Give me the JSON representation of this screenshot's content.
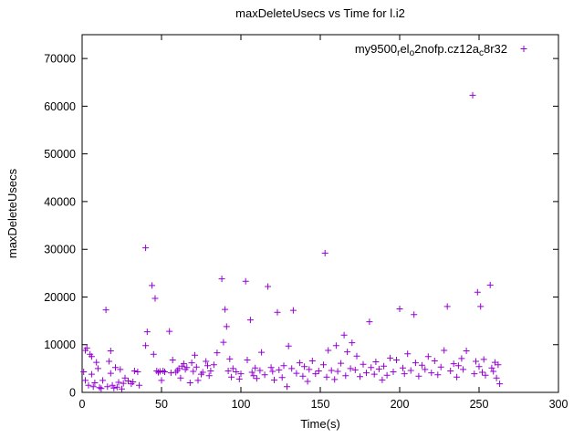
{
  "chart_data": {
    "type": "scatter",
    "title": "maxDeleteUsecs vs Time for l.i2",
    "xlabel": "Time(s)",
    "ylabel": "maxDeleteUsecs",
    "xlim": [
      0,
      300
    ],
    "ylim": [
      0,
      75000
    ],
    "xticks": [
      0,
      50,
      100,
      150,
      200,
      250,
      300
    ],
    "yticks": [
      0,
      10000,
      20000,
      30000,
      40000,
      50000,
      60000,
      70000
    ],
    "grid": false,
    "legend_position": "top-right-inside",
    "marker": "plus",
    "marker_color": "#9400d3",
    "legend": {
      "segments": [
        {
          "t": "my9500",
          "sub": false
        },
        {
          "t": "r",
          "sub": true
        },
        {
          "t": "el",
          "sub": false
        },
        {
          "t": "o",
          "sub": true
        },
        {
          "t": "2nofp.cz12a",
          "sub": false
        },
        {
          "t": "c",
          "sub": true
        },
        {
          "t": "8r32",
          "sub": false
        }
      ]
    },
    "series": [
      {
        "name": "my9500_rel_o2nofp.cz12a_c8r32",
        "points": [
          [
            1,
            4300
          ],
          [
            2,
            8800
          ],
          [
            2,
            2500
          ],
          [
            3,
            9300
          ],
          [
            4,
            1500
          ],
          [
            5,
            8000
          ],
          [
            6,
            7500
          ],
          [
            6,
            3800
          ],
          [
            7,
            1200
          ],
          [
            8,
            2000
          ],
          [
            9,
            6300
          ],
          [
            10,
            5000
          ],
          [
            11,
            1000
          ],
          [
            12,
            800
          ],
          [
            13,
            2500
          ],
          [
            15,
            17300
          ],
          [
            16,
            1200
          ],
          [
            17,
            6500
          ],
          [
            18,
            4000
          ],
          [
            18,
            8700
          ],
          [
            19,
            1500
          ],
          [
            20,
            900
          ],
          [
            21,
            5200
          ],
          [
            22,
            1100
          ],
          [
            23,
            2100
          ],
          [
            24,
            4800
          ],
          [
            25,
            700
          ],
          [
            26,
            1900
          ],
          [
            27,
            3000
          ],
          [
            29,
            2400
          ],
          [
            31,
            1800
          ],
          [
            32,
            2200
          ],
          [
            33,
            4500
          ],
          [
            35,
            4300
          ],
          [
            36,
            1500
          ],
          [
            40,
            30300
          ],
          [
            40,
            9800
          ],
          [
            41,
            12700
          ],
          [
            44,
            22400
          ],
          [
            46,
            19700
          ],
          [
            45,
            8000
          ],
          [
            47,
            4500
          ],
          [
            48,
            4200
          ],
          [
            49,
            4400
          ],
          [
            50,
            2500
          ],
          [
            51,
            4500
          ],
          [
            52,
            4300
          ],
          [
            55,
            12800
          ],
          [
            56,
            4100
          ],
          [
            57,
            6800
          ],
          [
            59,
            4200
          ],
          [
            60,
            4600
          ],
          [
            61,
            5000
          ],
          [
            62,
            3000
          ],
          [
            63,
            5500
          ],
          [
            64,
            6000
          ],
          [
            65,
            4800
          ],
          [
            66,
            5200
          ],
          [
            68,
            2000
          ],
          [
            69,
            6200
          ],
          [
            70,
            4400
          ],
          [
            71,
            7800
          ],
          [
            72,
            5300
          ],
          [
            73,
            2500
          ],
          [
            75,
            3800
          ],
          [
            76,
            4200
          ],
          [
            78,
            6500
          ],
          [
            79,
            5600
          ],
          [
            80,
            3500
          ],
          [
            81,
            4500
          ],
          [
            83,
            5800
          ],
          [
            85,
            8300
          ],
          [
            88,
            23800
          ],
          [
            89,
            10500
          ],
          [
            90,
            17400
          ],
          [
            91,
            13800
          ],
          [
            92,
            4500
          ],
          [
            93,
            7000
          ],
          [
            94,
            3200
          ],
          [
            95,
            5000
          ],
          [
            97,
            4300
          ],
          [
            99,
            2800
          ],
          [
            100,
            3900
          ],
          [
            103,
            23300
          ],
          [
            104,
            6800
          ],
          [
            106,
            15200
          ],
          [
            107,
            4200
          ],
          [
            108,
            3500
          ],
          [
            109,
            5100
          ],
          [
            110,
            2900
          ],
          [
            112,
            4600
          ],
          [
            113,
            8400
          ],
          [
            115,
            3700
          ],
          [
            117,
            22200
          ],
          [
            119,
            5200
          ],
          [
            120,
            4400
          ],
          [
            121,
            2600
          ],
          [
            123,
            16800
          ],
          [
            124,
            4700
          ],
          [
            126,
            3100
          ],
          [
            127,
            5600
          ],
          [
            129,
            1200
          ],
          [
            130,
            9700
          ],
          [
            132,
            5000
          ],
          [
            133,
            17200
          ],
          [
            135,
            4000
          ],
          [
            137,
            6200
          ],
          [
            139,
            3400
          ],
          [
            140,
            5400
          ],
          [
            142,
            2300
          ],
          [
            143,
            4800
          ],
          [
            145,
            6600
          ],
          [
            147,
            3900
          ],
          [
            149,
            4500
          ],
          [
            153,
            29200
          ],
          [
            152,
            5800
          ],
          [
            154,
            3200
          ],
          [
            155,
            8800
          ],
          [
            157,
            4600
          ],
          [
            159,
            2700
          ],
          [
            160,
            9800
          ],
          [
            161,
            4400
          ],
          [
            163,
            6100
          ],
          [
            165,
            12000
          ],
          [
            166,
            3500
          ],
          [
            167,
            8500
          ],
          [
            169,
            5000
          ],
          [
            170,
            10400
          ],
          [
            172,
            4700
          ],
          [
            173,
            7600
          ],
          [
            175,
            3300
          ],
          [
            177,
            5900
          ],
          [
            179,
            4100
          ],
          [
            181,
            14800
          ],
          [
            182,
            5200
          ],
          [
            184,
            3800
          ],
          [
            185,
            6400
          ],
          [
            187,
            4900
          ],
          [
            189,
            2600
          ],
          [
            190,
            5500
          ],
          [
            192,
            3600
          ],
          [
            194,
            7200
          ],
          [
            196,
            4300
          ],
          [
            198,
            6800
          ],
          [
            200,
            17500
          ],
          [
            202,
            5100
          ],
          [
            203,
            3900
          ],
          [
            205,
            8100
          ],
          [
            207,
            4600
          ],
          [
            209,
            16300
          ],
          [
            210,
            6200
          ],
          [
            212,
            3400
          ],
          [
            214,
            5700
          ],
          [
            216,
            4800
          ],
          [
            218,
            7500
          ],
          [
            220,
            4100
          ],
          [
            222,
            6600
          ],
          [
            224,
            3700
          ],
          [
            226,
            5300
          ],
          [
            228,
            8800
          ],
          [
            230,
            18000
          ],
          [
            232,
            4500
          ],
          [
            234,
            6000
          ],
          [
            236,
            3200
          ],
          [
            237,
            5600
          ],
          [
            239,
            7100
          ],
          [
            240,
            4800
          ],
          [
            242,
            8700
          ],
          [
            246,
            62300
          ],
          [
            247,
            3900
          ],
          [
            248,
            6500
          ],
          [
            249,
            21000
          ],
          [
            250,
            5400
          ],
          [
            251,
            18000
          ],
          [
            252,
            4200
          ],
          [
            253,
            6900
          ],
          [
            254,
            3600
          ],
          [
            257,
            22500
          ],
          [
            258,
            5100
          ],
          [
            259,
            4400
          ],
          [
            260,
            6300
          ],
          [
            261,
            3000
          ],
          [
            262,
            5800
          ],
          [
            263,
            1800
          ]
        ]
      }
    ]
  }
}
